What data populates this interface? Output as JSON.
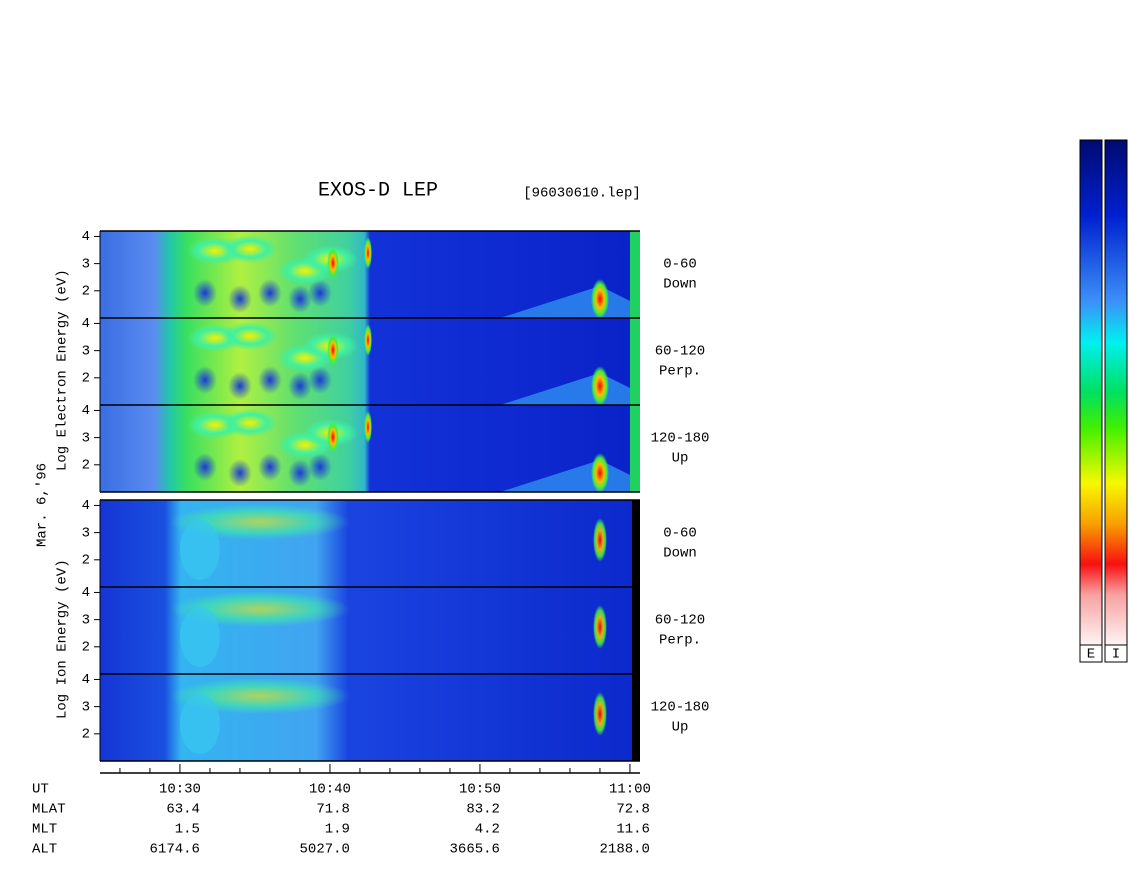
{
  "chart_data": {
    "type": "spectrogram",
    "title": "EXOS-D LEP",
    "file_label": "[96030610.lep]",
    "date_label": "Mar. 6,'96",
    "ylim": [
      1,
      4.2
    ],
    "yticks": [
      2,
      3,
      4
    ],
    "xlim": [
      24.67,
      60.67
    ],
    "xticks": [
      {
        "value": 30,
        "label": "10:30"
      },
      {
        "value": 40,
        "label": "10:40"
      },
      {
        "value": 50,
        "label": "10:50"
      },
      {
        "value": 60,
        "label": "11:00"
      }
    ],
    "xminorticks": [
      26,
      28,
      32,
      34,
      36,
      38,
      42,
      44,
      46,
      48,
      52,
      54,
      56,
      58
    ],
    "groups": [
      {
        "kind": "electron",
        "ylabel": "Log Electron Energy (eV)",
        "panels": [
          {
            "angle": "0-60",
            "direction": "Down"
          },
          {
            "angle": "60-120",
            "direction": "Perp."
          },
          {
            "angle": "120-180",
            "direction": "Up"
          }
        ]
      },
      {
        "kind": "ion",
        "ylabel": "Log Ion Energy (eV)",
        "panels": [
          {
            "angle": "0-60",
            "direction": "Down"
          },
          {
            "angle": "60-120",
            "direction": "Perp."
          },
          {
            "angle": "120-180",
            "direction": "Up"
          }
        ]
      }
    ],
    "orbit_table": {
      "time_label": "UT",
      "rows": [
        {
          "name": "MLAT",
          "values": [
            "63.4",
            "71.8",
            "83.2",
            "72.8"
          ]
        },
        {
          "name": "MLT",
          "values": [
            "1.5",
            "1.9",
            "4.2",
            "11.6"
          ]
        },
        {
          "name": "ALT",
          "values": [
            "6174.6",
            "5027.0",
            "3665.6",
            "2188.0"
          ]
        }
      ]
    },
    "colorbars": [
      "E",
      "I"
    ]
  }
}
